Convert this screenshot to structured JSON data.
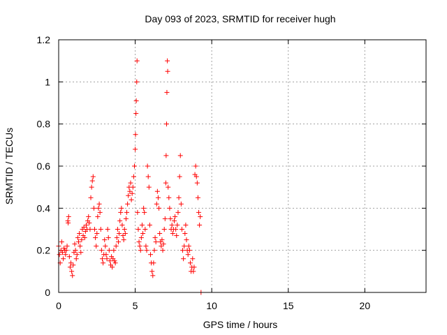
{
  "chart_data": {
    "type": "scatter",
    "title": "Day 093 of 2023, SRMTID for receiver hugh",
    "xlabel": "GPS time / hours",
    "ylabel": "SRMTID / TECUs",
    "xlim": [
      0,
      24
    ],
    "ylim": [
      0,
      1.2
    ],
    "xticks": [
      0,
      5,
      10,
      15,
      20
    ],
    "xtick_labels": [
      "0",
      "5",
      "10",
      "15",
      "20"
    ],
    "yticks": [
      0,
      0.2,
      0.4,
      0.6,
      0.8,
      1.0,
      1.2
    ],
    "ytick_labels": [
      "0",
      "0.2",
      "0.4",
      "0.6",
      "0.8",
      "1",
      "1.2"
    ],
    "grid": true,
    "marker": "+",
    "color": "#ff0000",
    "series": [
      {
        "name": "SRMTID",
        "points": [
          [
            0.0,
            0.22
          ],
          [
            0.05,
            0.18
          ],
          [
            0.1,
            0.14
          ],
          [
            0.15,
            0.2
          ],
          [
            0.2,
            0.24
          ],
          [
            0.25,
            0.19
          ],
          [
            0.3,
            0.16
          ],
          [
            0.35,
            0.21
          ],
          [
            0.4,
            0.2
          ],
          [
            0.45,
            0.18
          ],
          [
            0.5,
            0.2
          ],
          [
            0.55,
            0.22
          ],
          [
            0.6,
            0.34
          ],
          [
            0.62,
            0.33
          ],
          [
            0.65,
            0.36
          ],
          [
            0.7,
            0.17
          ],
          [
            0.75,
            0.12
          ],
          [
            0.8,
            0.14
          ],
          [
            0.85,
            0.1
          ],
          [
            0.9,
            0.08
          ],
          [
            0.95,
            0.13
          ],
          [
            1.0,
            0.19
          ],
          [
            1.05,
            0.23
          ],
          [
            1.1,
            0.2
          ],
          [
            1.15,
            0.16
          ],
          [
            1.2,
            0.18
          ],
          [
            1.25,
            0.26
          ],
          [
            1.3,
            0.24
          ],
          [
            1.35,
            0.28
          ],
          [
            1.4,
            0.22
          ],
          [
            1.45,
            0.19
          ],
          [
            1.5,
            0.25
          ],
          [
            1.55,
            0.3
          ],
          [
            1.6,
            0.27
          ],
          [
            1.65,
            0.31
          ],
          [
            1.7,
            0.26
          ],
          [
            1.75,
            0.29
          ],
          [
            1.8,
            0.32
          ],
          [
            1.85,
            0.3
          ],
          [
            1.9,
            0.34
          ],
          [
            1.95,
            0.36
          ],
          [
            2.0,
            0.33
          ],
          [
            2.05,
            0.3
          ],
          [
            2.1,
            0.45
          ],
          [
            2.15,
            0.5
          ],
          [
            2.2,
            0.53
          ],
          [
            2.25,
            0.55
          ],
          [
            2.3,
            0.4
          ],
          [
            2.35,
            0.3
          ],
          [
            2.4,
            0.26
          ],
          [
            2.45,
            0.22
          ],
          [
            2.5,
            0.28
          ],
          [
            2.55,
            0.36
          ],
          [
            2.6,
            0.4
          ],
          [
            2.65,
            0.42
          ],
          [
            2.7,
            0.38
          ],
          [
            2.75,
            0.3
          ],
          [
            2.8,
            0.2
          ],
          [
            2.85,
            0.16
          ],
          [
            2.9,
            0.14
          ],
          [
            2.95,
            0.18
          ],
          [
            3.0,
            0.25
          ],
          [
            3.05,
            0.22
          ],
          [
            3.1,
            0.18
          ],
          [
            3.15,
            0.16
          ],
          [
            3.2,
            0.3
          ],
          [
            3.25,
            0.26
          ],
          [
            3.3,
            0.2
          ],
          [
            3.35,
            0.15
          ],
          [
            3.4,
            0.13
          ],
          [
            3.45,
            0.17
          ],
          [
            3.5,
            0.12
          ],
          [
            3.55,
            0.16
          ],
          [
            3.6,
            0.2
          ],
          [
            3.65,
            0.15
          ],
          [
            3.7,
            0.14
          ],
          [
            3.75,
            0.22
          ],
          [
            3.8,
            0.26
          ],
          [
            3.85,
            0.3
          ],
          [
            3.9,
            0.24
          ],
          [
            3.95,
            0.28
          ],
          [
            4.0,
            0.34
          ],
          [
            4.05,
            0.38
          ],
          [
            4.1,
            0.4
          ],
          [
            4.15,
            0.32
          ],
          [
            4.2,
            0.27
          ],
          [
            4.25,
            0.25
          ],
          [
            4.3,
            0.3
          ],
          [
            4.35,
            0.28
          ],
          [
            4.4,
            0.35
          ],
          [
            4.45,
            0.38
          ],
          [
            4.5,
            0.42
          ],
          [
            4.55,
            0.46
          ],
          [
            4.6,
            0.5
          ],
          [
            4.65,
            0.48
          ],
          [
            4.7,
            0.52
          ],
          [
            4.75,
            0.44
          ],
          [
            4.8,
            0.47
          ],
          [
            4.85,
            0.5
          ],
          [
            4.9,
            0.55
          ],
          [
            4.95,
            0.6
          ],
          [
            5.0,
            0.68
          ],
          [
            5.02,
            0.75
          ],
          [
            5.05,
            0.85
          ],
          [
            5.07,
            0.91
          ],
          [
            5.1,
            1.0
          ],
          [
            5.12,
            1.1
          ],
          [
            5.15,
            0.38
          ],
          [
            5.2,
            0.3
          ],
          [
            5.25,
            0.24
          ],
          [
            5.3,
            0.22
          ],
          [
            5.35,
            0.2
          ],
          [
            5.4,
            0.26
          ],
          [
            5.45,
            0.32
          ],
          [
            5.5,
            0.28
          ],
          [
            5.55,
            0.4
          ],
          [
            5.6,
            0.38
          ],
          [
            5.65,
            0.3
          ],
          [
            5.7,
            0.22
          ],
          [
            5.75,
            0.2
          ],
          [
            5.8,
            0.6
          ],
          [
            5.85,
            0.55
          ],
          [
            5.9,
            0.5
          ],
          [
            5.95,
            0.32
          ],
          [
            6.0,
            0.18
          ],
          [
            6.05,
            0.14
          ],
          [
            6.1,
            0.1
          ],
          [
            6.15,
            0.08
          ],
          [
            6.2,
            0.14
          ],
          [
            6.25,
            0.2
          ],
          [
            6.3,
            0.26
          ],
          [
            6.35,
            0.24
          ],
          [
            6.4,
            0.42
          ],
          [
            6.45,
            0.48
          ],
          [
            6.5,
            0.45
          ],
          [
            6.55,
            0.4
          ],
          [
            6.6,
            0.28
          ],
          [
            6.65,
            0.24
          ],
          [
            6.7,
            0.22
          ],
          [
            6.75,
            0.25
          ],
          [
            6.8,
            0.2
          ],
          [
            6.85,
            0.23
          ],
          [
            6.9,
            0.3
          ],
          [
            6.95,
            0.35
          ],
          [
            7.0,
            0.52
          ],
          [
            7.02,
            0.65
          ],
          [
            7.05,
            0.8
          ],
          [
            7.07,
            0.95
          ],
          [
            7.1,
            1.1
          ],
          [
            7.12,
            1.05
          ],
          [
            7.15,
            0.5
          ],
          [
            7.2,
            0.45
          ],
          [
            7.25,
            0.4
          ],
          [
            7.3,
            0.35
          ],
          [
            7.35,
            0.3
          ],
          [
            7.4,
            0.32
          ],
          [
            7.45,
            0.28
          ],
          [
            7.5,
            0.3
          ],
          [
            7.55,
            0.34
          ],
          [
            7.6,
            0.36
          ],
          [
            7.65,
            0.3
          ],
          [
            7.7,
            0.27
          ],
          [
            7.75,
            0.32
          ],
          [
            7.8,
            0.38
          ],
          [
            7.85,
            0.45
          ],
          [
            7.9,
            0.55
          ],
          [
            7.95,
            0.65
          ],
          [
            8.0,
            0.42
          ],
          [
            8.05,
            0.3
          ],
          [
            8.1,
            0.2
          ],
          [
            8.15,
            0.16
          ],
          [
            8.2,
            0.22
          ],
          [
            8.25,
            0.28
          ],
          [
            8.3,
            0.32
          ],
          [
            8.35,
            0.25
          ],
          [
            8.4,
            0.2
          ],
          [
            8.45,
            0.18
          ],
          [
            8.5,
            0.22
          ],
          [
            8.55,
            0.2
          ],
          [
            8.6,
            0.14
          ],
          [
            8.65,
            0.1
          ],
          [
            8.7,
            0.12
          ],
          [
            8.75,
            0.16
          ],
          [
            8.8,
            0.1
          ],
          [
            8.85,
            0.12
          ],
          [
            8.9,
            0.56
          ],
          [
            8.95,
            0.6
          ],
          [
            9.0,
            0.55
          ],
          [
            9.05,
            0.52
          ],
          [
            9.1,
            0.45
          ],
          [
            9.15,
            0.38
          ],
          [
            9.2,
            0.32
          ],
          [
            9.25,
            0.36
          ],
          [
            9.3,
            0.0
          ]
        ]
      }
    ]
  }
}
